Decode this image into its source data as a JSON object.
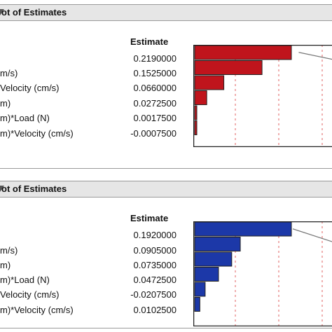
{
  "panels": [
    {
      "title": "ot of Estimates",
      "estimate_header": "Estimate",
      "bar_color": "#c0141c",
      "rows": [
        {
          "term": "",
          "estimate": "0.2190000",
          "value": 0.219
        },
        {
          "term": "m/s)",
          "estimate": "0.1525000",
          "value": 0.1525
        },
        {
          "term": "Velocity (cm/s)",
          "estimate": "0.0660000",
          "value": 0.066
        },
        {
          "term": "m)",
          "estimate": "0.0272500",
          "value": 0.02725
        },
        {
          "term": "m)*Load (N)",
          "estimate": "0.0017500",
          "value": 0.00175
        },
        {
          "term": "m)*Velocity (cm/s)",
          "estimate": "-0.0007500",
          "value": -0.00075
        }
      ]
    },
    {
      "title": "ot of Estimates",
      "estimate_header": "Estimate",
      "bar_color": "#1c38a8",
      "rows": [
        {
          "term": "",
          "estimate": "0.1920000",
          "value": 0.192
        },
        {
          "term": "m/s)",
          "estimate": "0.0905000",
          "value": 0.0905
        },
        {
          "term": "m)",
          "estimate": "0.0735000",
          "value": 0.0735
        },
        {
          "term": "m)*Load (N)",
          "estimate": "0.0472500",
          "value": 0.04725
        },
        {
          "term": "Velocity (cm/s)",
          "estimate": "-0.0207500",
          "value": -0.02075
        },
        {
          "term": "m)*Velocity (cm/s)",
          "estimate": "0.0102500",
          "value": 0.01025
        }
      ]
    }
  ]
}
